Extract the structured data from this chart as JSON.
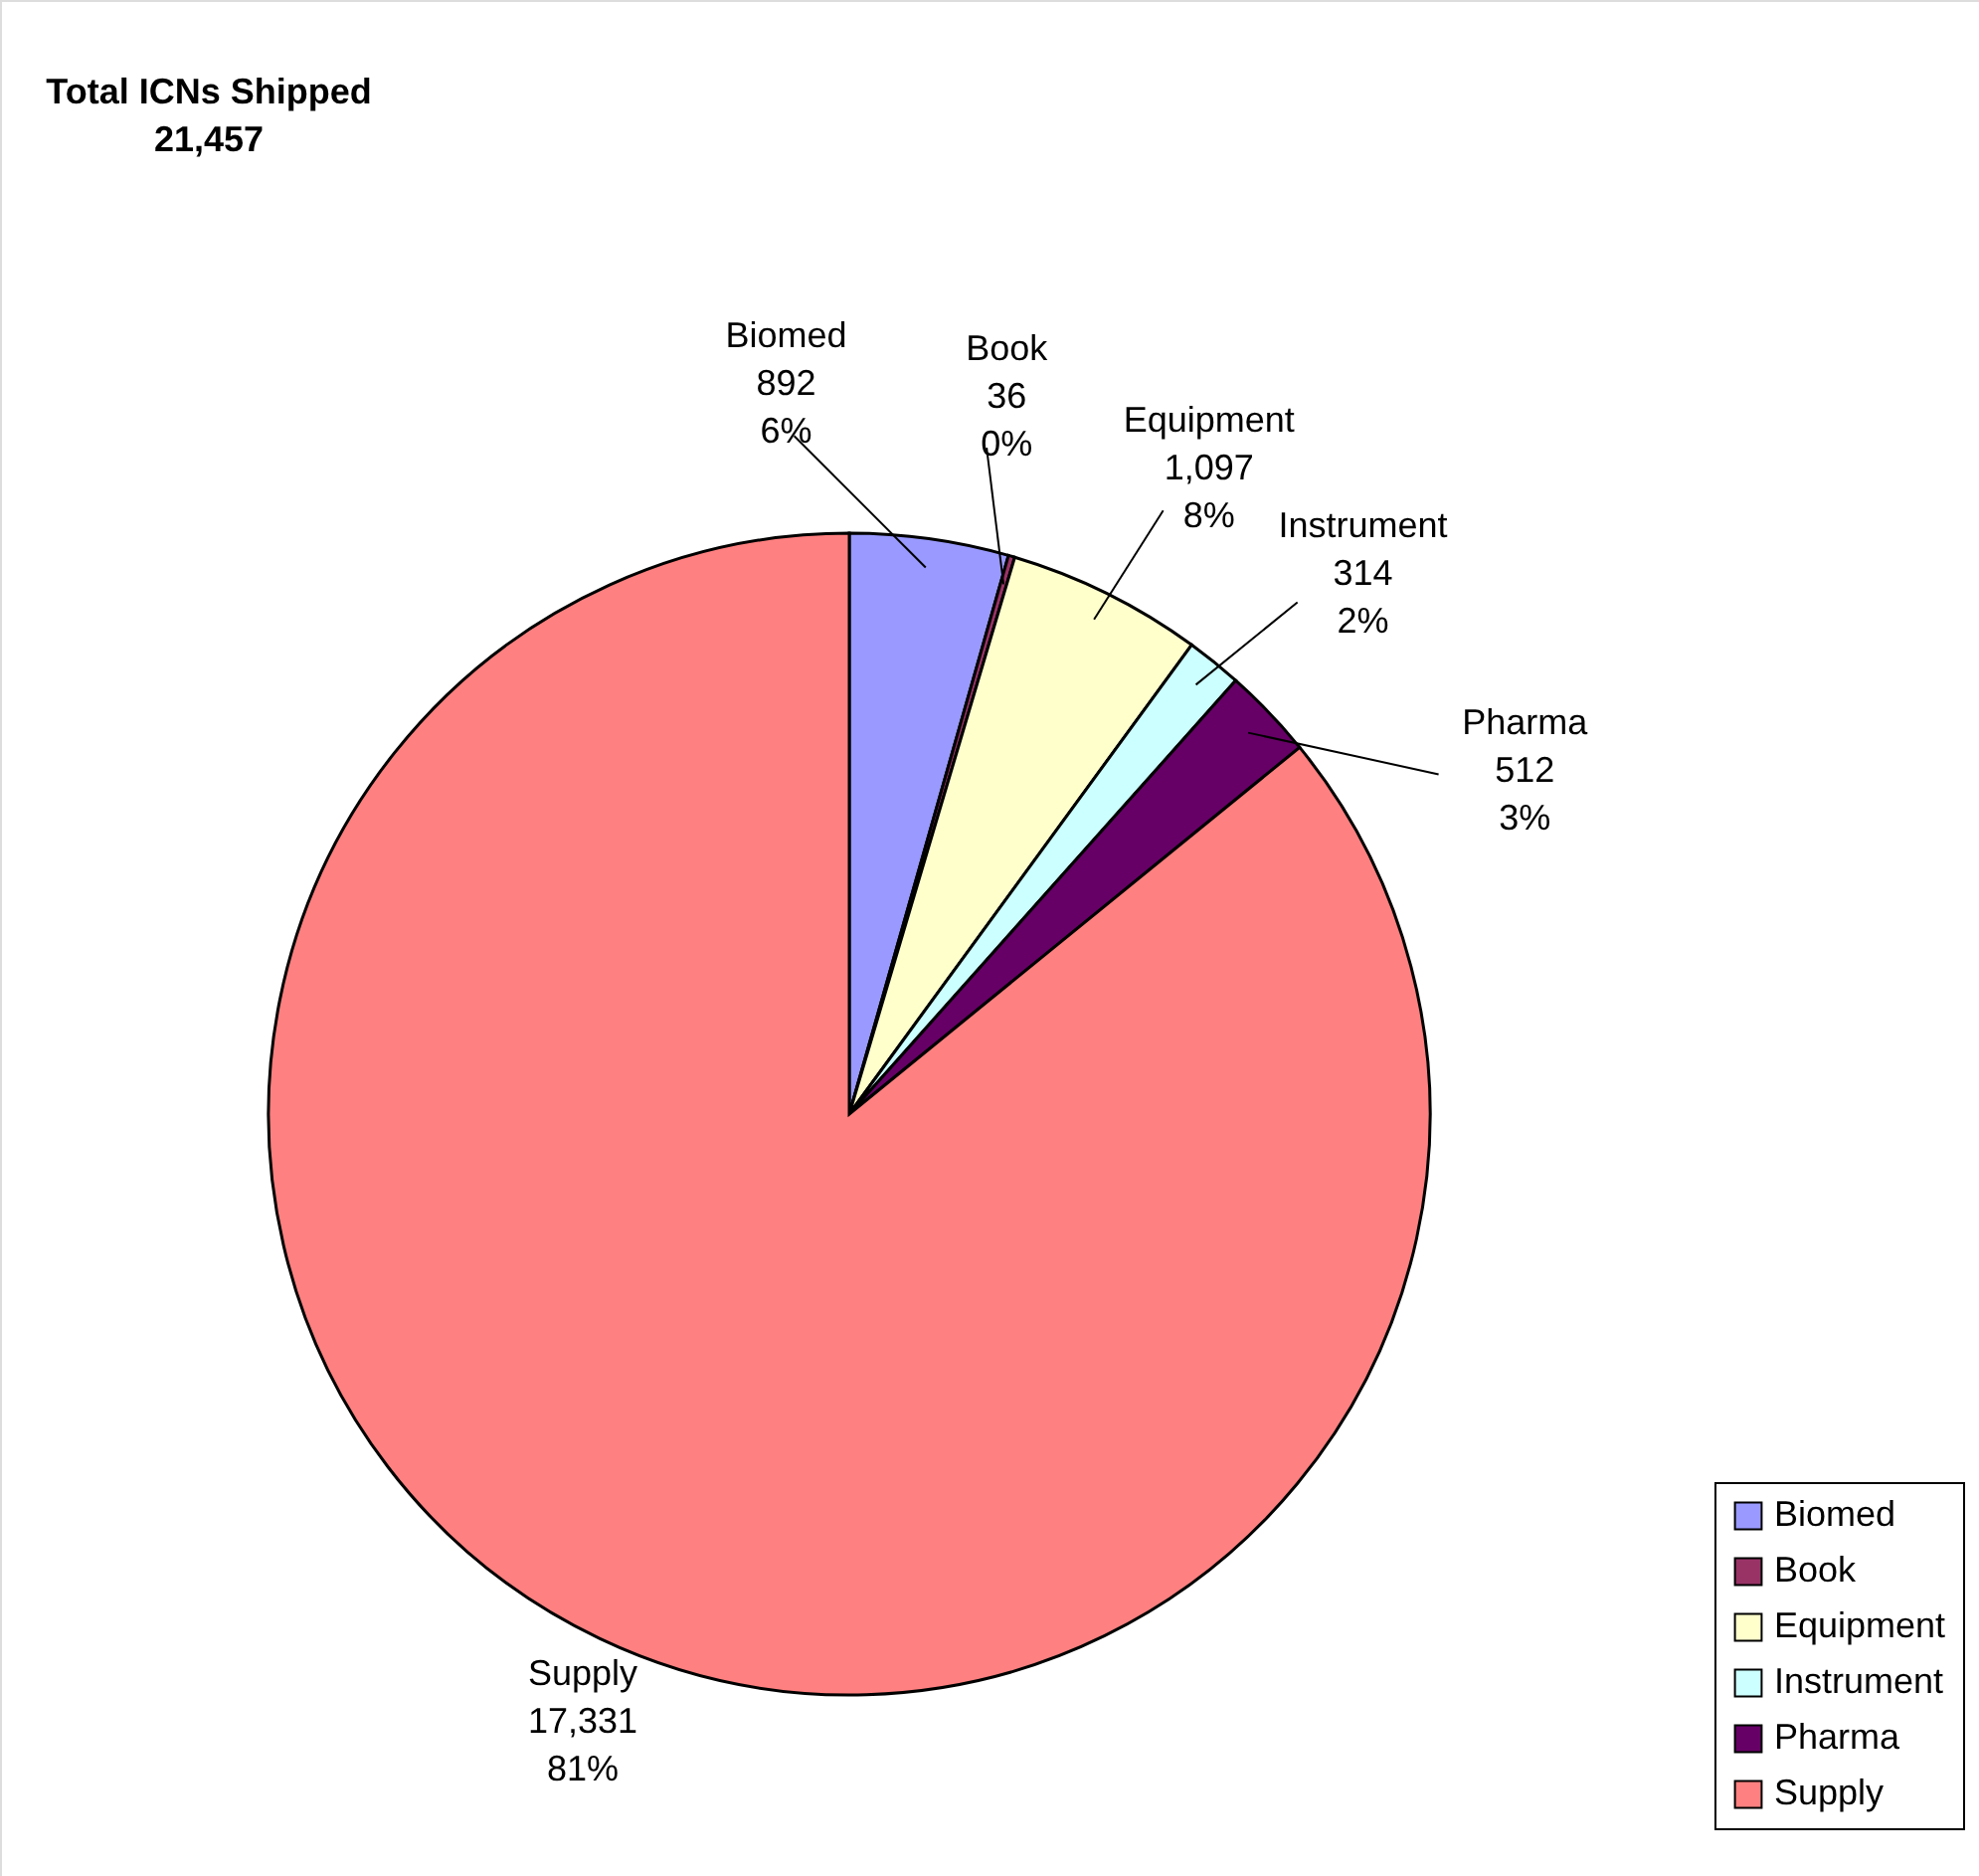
{
  "chart_data": {
    "type": "pie",
    "title": "Total ICNs Shipped",
    "subtitle": "21,457",
    "categories": [
      "Biomed",
      "Book",
      "Equipment",
      "Instrument",
      "Pharma",
      "Supply"
    ],
    "values": [
      892,
      36,
      1097,
      314,
      512,
      17331
    ],
    "value_labels": [
      "892\n6%",
      "36\n0%",
      "1,097\n8%",
      "314\n2%",
      "512\n3%",
      "17,331\n81%"
    ],
    "colors": [
      "#9999ff",
      "#993366",
      "#ffffcc",
      "#ccffff",
      "#660066",
      "#ff8080"
    ],
    "legend": "bottom right"
  }
}
